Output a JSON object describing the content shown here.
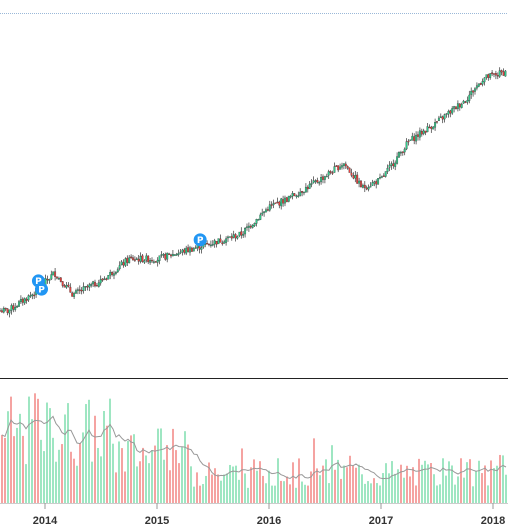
{
  "chart_data": {
    "type": "candlestick",
    "x_tick_labels": [
      "2014",
      "2015",
      "2016",
      "2017",
      "2018"
    ],
    "date_range": [
      "2013-01",
      "2018-03"
    ],
    "price_trend": [
      {
        "date": "2013-01",
        "price": 26
      },
      {
        "date": "2013-05",
        "price": 31
      },
      {
        "date": "2013-09",
        "price": 30
      },
      {
        "date": "2013-12",
        "price": 37
      },
      {
        "date": "2014-02",
        "price": 44
      },
      {
        "date": "2014-04",
        "price": 36
      },
      {
        "date": "2014-07",
        "price": 41
      },
      {
        "date": "2014-10",
        "price": 49
      },
      {
        "date": "2015-01",
        "price": 49
      },
      {
        "date": "2015-04",
        "price": 52
      },
      {
        "date": "2015-07",
        "price": 55
      },
      {
        "date": "2015-10",
        "price": 58
      },
      {
        "date": "2016-01",
        "price": 68
      },
      {
        "date": "2016-03",
        "price": 71
      },
      {
        "date": "2016-06",
        "price": 77
      },
      {
        "date": "2016-09",
        "price": 84
      },
      {
        "date": "2016-11",
        "price": 75
      },
      {
        "date": "2017-01",
        "price": 78
      },
      {
        "date": "2017-04",
        "price": 92
      },
      {
        "date": "2017-07",
        "price": 99
      },
      {
        "date": "2017-10",
        "price": 107
      },
      {
        "date": "2017-12",
        "price": 115
      },
      {
        "date": "2018-03",
        "price": 118
      }
    ],
    "markers": [
      {
        "label": "P",
        "date": "2013-12-10",
        "price": 41
      },
      {
        "label": "P",
        "date": "2013-12-20",
        "price": 38
      },
      {
        "label": "P",
        "date": "2015-05-20",
        "price": 56
      }
    ],
    "volume_panel": true,
    "volume_moving_average": true,
    "up_color": "#2ecc8a",
    "down_color": "#e8403c",
    "volume_up_color": "#9ee6c2",
    "volume_down_color": "#f5a3a1",
    "marker_color": "#2196f3",
    "grid": false
  }
}
